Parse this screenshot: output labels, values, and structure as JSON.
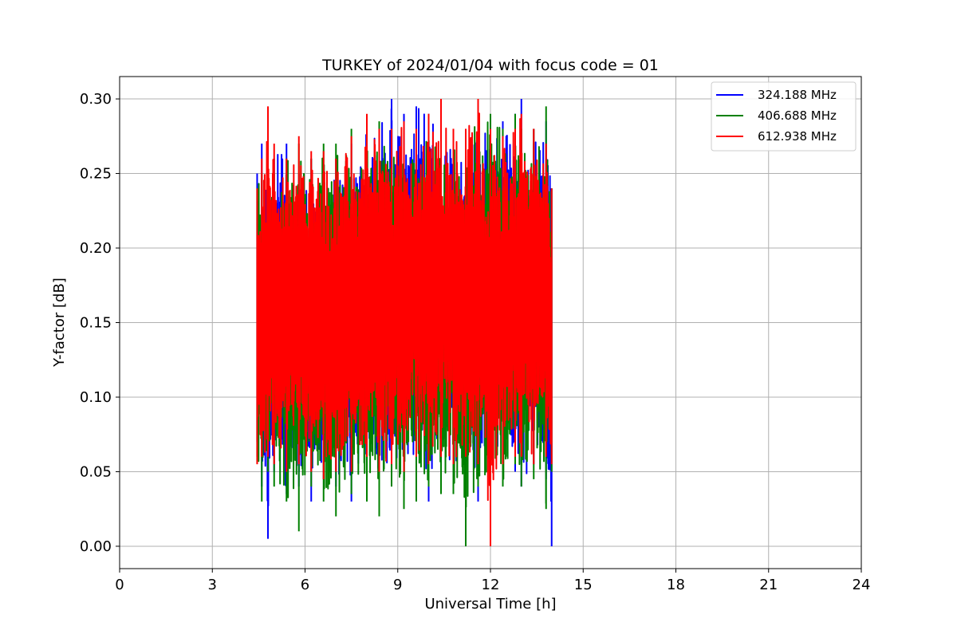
{
  "chart_data": {
    "type": "line",
    "title": "TURKEY of 2024/01/04 with focus code = 01",
    "xlabel": "Universal Time [h]",
    "ylabel": "Y-factor [dB]",
    "xlim": [
      0,
      24
    ],
    "ylim": [
      -0.015,
      0.315
    ],
    "xticks": [
      0,
      3,
      6,
      9,
      12,
      15,
      18,
      21,
      24
    ],
    "xtick_labels": [
      "0",
      "3",
      "6",
      "9",
      "12",
      "15",
      "18",
      "21",
      "24"
    ],
    "yticks": [
      0.0,
      0.05,
      0.1,
      0.15,
      0.2,
      0.25,
      0.3
    ],
    "ytick_labels": [
      "0.00",
      "0.05",
      "0.10",
      "0.15",
      "0.20",
      "0.25",
      "0.30"
    ],
    "grid": true,
    "legend_position": "top-right",
    "series": [
      {
        "name": "324.188 MHz",
        "color": "#0000ff",
        "x": [
          4.45,
          4.6,
          4.8,
          5.0,
          5.4,
          5.8,
          6.2,
          6.6,
          7.0,
          7.5,
          8.0,
          8.4,
          8.8,
          9.2,
          9.6,
          10.0,
          10.4,
          10.8,
          11.2,
          11.6,
          12.0,
          12.4,
          12.8,
          13.0,
          13.4,
          13.8,
          13.98
        ],
        "min": [
          0.07,
          0.04,
          0.005,
          0.05,
          0.035,
          0.04,
          0.03,
          0.045,
          0.04,
          0.03,
          0.05,
          0.035,
          0.045,
          0.04,
          0.05,
          0.03,
          0.05,
          0.045,
          0.055,
          0.03,
          0.045,
          0.06,
          0.05,
          0.04,
          0.055,
          0.045,
          0.0
        ],
        "max": [
          0.25,
          0.27,
          0.26,
          0.26,
          0.27,
          0.25,
          0.26,
          0.25,
          0.26,
          0.27,
          0.28,
          0.28,
          0.3,
          0.29,
          0.295,
          0.29,
          0.29,
          0.28,
          0.27,
          0.28,
          0.28,
          0.285,
          0.29,
          0.3,
          0.28,
          0.285,
          0.24
        ]
      },
      {
        "name": "406.688 MHz",
        "color": "#008000",
        "x": [
          4.45,
          4.6,
          4.8,
          5.0,
          5.4,
          5.8,
          6.2,
          6.6,
          7.0,
          7.5,
          8.0,
          8.4,
          8.8,
          9.2,
          9.6,
          10.0,
          10.4,
          10.8,
          11.2,
          11.6,
          12.0,
          12.4,
          12.8,
          13.0,
          13.4,
          13.8,
          13.98
        ],
        "min": [
          0.06,
          0.03,
          0.05,
          0.04,
          0.03,
          0.01,
          0.04,
          0.03,
          0.02,
          0.035,
          0.03,
          0.02,
          0.04,
          0.025,
          0.03,
          0.04,
          0.035,
          0.035,
          0.0,
          0.04,
          0.045,
          0.04,
          0.055,
          0.04,
          0.045,
          0.025,
          0.05
        ],
        "max": [
          0.24,
          0.25,
          0.26,
          0.25,
          0.26,
          0.27,
          0.26,
          0.27,
          0.27,
          0.28,
          0.285,
          0.285,
          0.28,
          0.275,
          0.28,
          0.28,
          0.27,
          0.275,
          0.28,
          0.29,
          0.29,
          0.28,
          0.29,
          0.28,
          0.28,
          0.295,
          0.24
        ]
      },
      {
        "name": "612.938 MHz",
        "color": "#ff0000",
        "x": [
          4.45,
          4.6,
          4.8,
          5.0,
          5.4,
          5.8,
          6.2,
          6.6,
          7.0,
          7.5,
          8.0,
          8.4,
          8.8,
          9.2,
          9.6,
          10.0,
          10.4,
          10.8,
          11.2,
          11.6,
          12.0,
          12.4,
          12.8,
          13.0,
          13.4,
          13.8,
          13.98
        ],
        "min": [
          0.055,
          0.06,
          0.06,
          0.055,
          0.05,
          0.055,
          0.05,
          0.045,
          0.05,
          0.05,
          0.06,
          0.05,
          0.055,
          0.05,
          0.06,
          0.055,
          0.06,
          0.055,
          0.06,
          0.055,
          0.0,
          0.055,
          0.06,
          0.06,
          0.055,
          0.06,
          0.055
        ],
        "max": [
          0.24,
          0.26,
          0.295,
          0.27,
          0.26,
          0.275,
          0.265,
          0.265,
          0.26,
          0.275,
          0.29,
          0.28,
          0.28,
          0.285,
          0.28,
          0.29,
          0.3,
          0.28,
          0.28,
          0.3,
          0.28,
          0.275,
          0.28,
          0.29,
          0.28,
          0.27,
          0.24
        ]
      }
    ]
  }
}
